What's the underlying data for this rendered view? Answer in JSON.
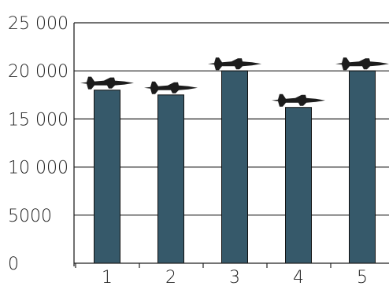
{
  "chart_data": {
    "type": "bar",
    "categories": [
      "1",
      "2",
      "3",
      "4",
      "5"
    ],
    "values": [
      18000,
      17500,
      20000,
      16200,
      20000
    ],
    "ylim": [
      0,
      25000
    ],
    "yticks": [
      0,
      5000,
      10000,
      15000,
      20000,
      25000
    ],
    "ytick_labels": [
      "0",
      "5000",
      "10 000",
      "15 000",
      "20 000",
      "25 000"
    ],
    "grid": true,
    "bar_color": "#36596a",
    "bar_icons": [
      "fighter-jet-icon",
      "fighter-jet-icon",
      "fighter-jet-icon",
      "fighter-jet-icon",
      "fighter-jet-icon"
    ]
  }
}
